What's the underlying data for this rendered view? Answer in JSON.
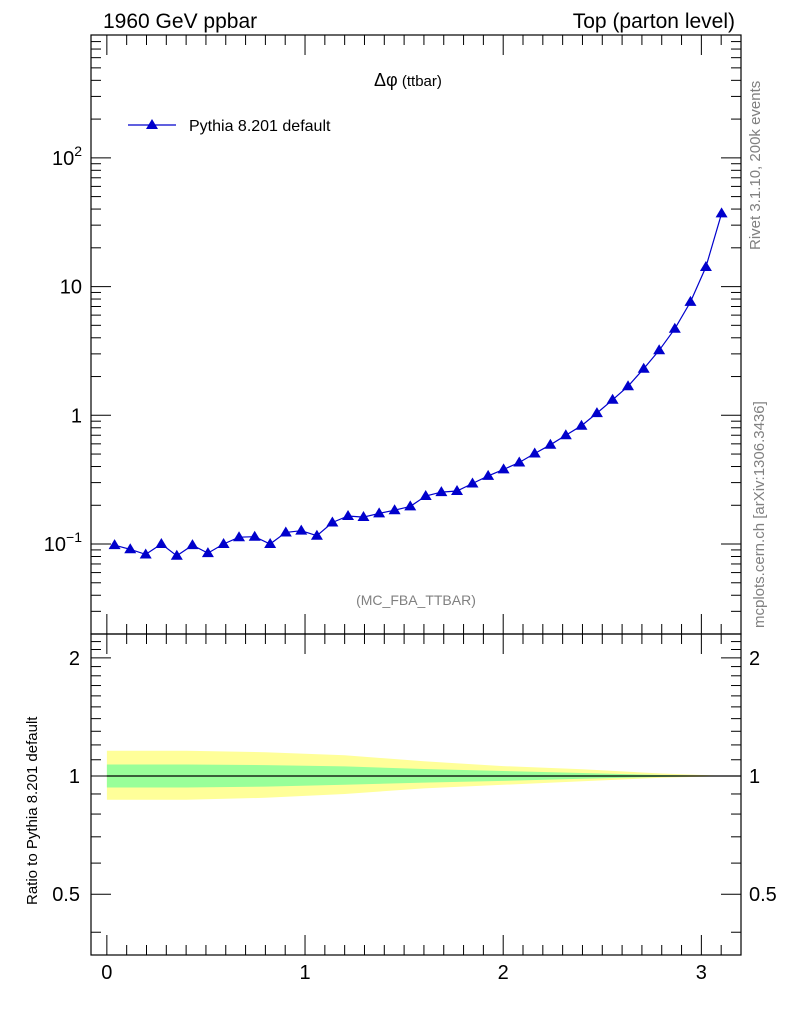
{
  "header": {
    "left": "1960 GeV ppbar",
    "right": "Top (parton level)"
  },
  "side_labels": {
    "rivet": "Rivet 3.1.10,  200k events",
    "mcplots": "mcplots.cern.ch [arXiv:1306.3436]"
  },
  "analysis_label": "(MC_FBA_TTBAR)",
  "colors": {
    "series": "#0000cc",
    "band_inner": "#99ff99",
    "band_outer": "#ffff99",
    "ratio_line": "#000000"
  },
  "chart_data": [
    {
      "type": "line",
      "title": "Δφ (ttbar)",
      "title_parts": {
        "symbol": "Δφ",
        "suffix": " (ttbar)"
      },
      "xlabel": "",
      "ylabel": "",
      "xlim": [
        -0.08,
        3.2
      ],
      "ylim": [
        0.02,
        900
      ],
      "yscale": "log",
      "grid": false,
      "legend": {
        "placement": "top-left",
        "entries": [
          "Pythia 8.201 default"
        ]
      },
      "y_tick_labels": [
        {
          "value": 0.1,
          "base": "10",
          "exp": "−1"
        },
        {
          "value": 1,
          "base": "1",
          "exp": ""
        },
        {
          "value": 10,
          "base": "10",
          "exp": ""
        },
        {
          "value": 100,
          "base": "10",
          "exp": "2"
        }
      ],
      "series": [
        {
          "name": "Pythia 8.201 default",
          "marker": "triangle-up",
          "x": [
            0.039,
            0.118,
            0.196,
            0.275,
            0.353,
            0.432,
            0.51,
            0.589,
            0.667,
            0.746,
            0.824,
            0.903,
            0.981,
            1.06,
            1.138,
            1.217,
            1.295,
            1.374,
            1.452,
            1.531,
            1.609,
            1.688,
            1.767,
            1.845,
            1.924,
            2.002,
            2.081,
            2.159,
            2.238,
            2.316,
            2.395,
            2.473,
            2.552,
            2.63,
            2.709,
            2.787,
            2.866,
            2.945,
            3.023,
            3.102
          ],
          "y": [
            0.098,
            0.091,
            0.083,
            0.1,
            0.081,
            0.098,
            0.085,
            0.1,
            0.113,
            0.114,
            0.1,
            0.123,
            0.127,
            0.116,
            0.147,
            0.165,
            0.162,
            0.173,
            0.183,
            0.196,
            0.236,
            0.253,
            0.258,
            0.295,
            0.338,
            0.38,
            0.43,
            0.505,
            0.59,
            0.7,
            0.83,
            1.04,
            1.32,
            1.68,
            2.3,
            3.2,
            4.7,
            7.6,
            14.2,
            37.0
          ]
        }
      ]
    },
    {
      "type": "area",
      "title": "",
      "xlabel": "",
      "ylabel": "Ratio to Pythia 8.201 default",
      "xlim": [
        -0.08,
        3.2
      ],
      "ylim": [
        0.35,
        2.3
      ],
      "yscale": "log",
      "grid": false,
      "x_ticks": [
        "0",
        "1",
        "2",
        "3"
      ],
      "y_ticks": [
        "0.5",
        "1",
        "2"
      ],
      "reference_line": 1.0,
      "bands": {
        "x": [
          0.0,
          0.4,
          0.8,
          1.2,
          1.6,
          2.0,
          2.4,
          2.8,
          3.14
        ],
        "outer_lo": [
          0.87,
          0.87,
          0.88,
          0.9,
          0.93,
          0.95,
          0.97,
          0.99,
          1.0
        ],
        "outer_hi": [
          1.16,
          1.16,
          1.15,
          1.13,
          1.09,
          1.06,
          1.04,
          1.015,
          1.0
        ],
        "inner_lo": [
          0.935,
          0.935,
          0.94,
          0.95,
          0.962,
          0.972,
          0.984,
          0.995,
          1.0
        ],
        "inner_hi": [
          1.07,
          1.07,
          1.066,
          1.058,
          1.042,
          1.03,
          1.018,
          1.006,
          1.0
        ]
      }
    }
  ]
}
